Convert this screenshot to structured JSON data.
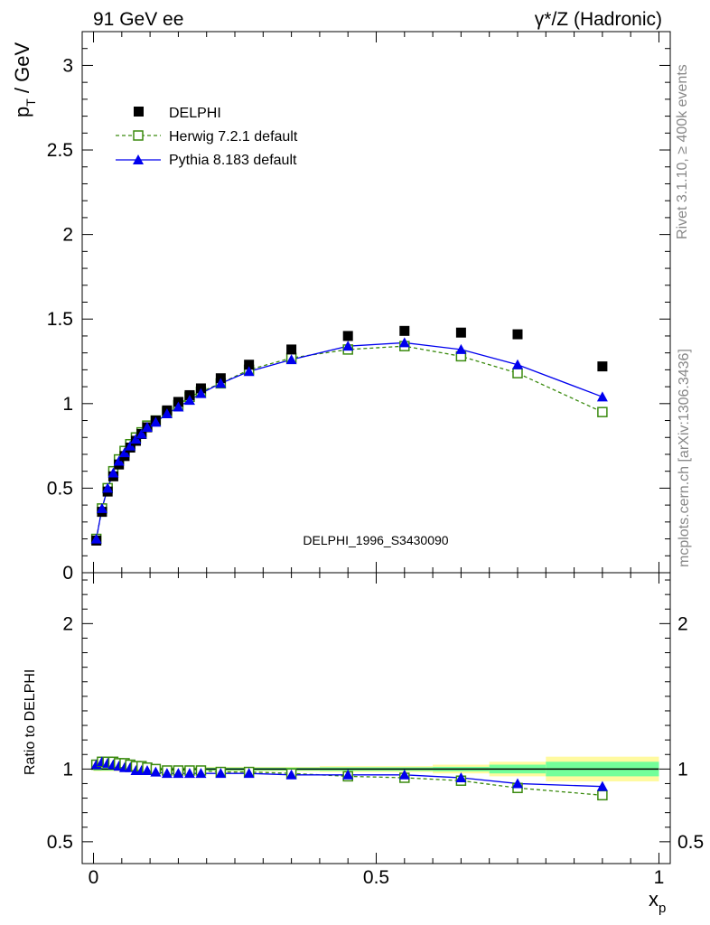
{
  "header": {
    "left": "91 GeV ee",
    "right": "γ*/Z (Hadronic)"
  },
  "side_labels": {
    "rivet": "Rivet 3.1.10, ≥ 400k events",
    "mcplots": "mcplots.cern.ch [arXiv:1306.3436]"
  },
  "watermark": "DELPHI_1996_S3430090",
  "colors": {
    "data": "#000000",
    "herwig": "#3a8a0e",
    "pythia": "#0000ee",
    "band_inner": "#73ff9a",
    "band_outer": "#fffaa0"
  },
  "chart_data": [
    {
      "type": "scatter",
      "panel": "main",
      "title": "",
      "ylabel_main": "p",
      "ylabel_sub": "T",
      "ylabel_unit": " / GeV",
      "xlabel": "",
      "xlim": [
        -0.02,
        1.02
      ],
      "ylim": [
        0,
        3.2
      ],
      "yticks": [
        0,
        0.5,
        1,
        1.5,
        2,
        2.5,
        3
      ],
      "ytick_labels": [
        "0",
        "0.5",
        "1",
        "1.5",
        "2",
        "2.5",
        "3"
      ],
      "legend": [
        "DELPHI",
        "Herwig 7.2.1 default",
        "Pythia 8.183 default"
      ],
      "x": [
        0.005,
        0.015,
        0.025,
        0.035,
        0.045,
        0.055,
        0.065,
        0.075,
        0.085,
        0.095,
        0.11,
        0.13,
        0.15,
        0.17,
        0.19,
        0.225,
        0.275,
        0.35,
        0.45,
        0.55,
        0.65,
        0.75,
        0.9
      ],
      "series": [
        {
          "name": "DELPHI",
          "values": [
            0.19,
            0.36,
            0.48,
            0.57,
            0.64,
            0.69,
            0.74,
            0.78,
            0.82,
            0.86,
            0.9,
            0.96,
            1.01,
            1.05,
            1.09,
            1.15,
            1.23,
            1.32,
            1.4,
            1.43,
            1.42,
            1.41,
            1.22
          ]
        },
        {
          "name": "Herwig 7.2.1 default",
          "values": [
            0.2,
            0.38,
            0.5,
            0.6,
            0.67,
            0.72,
            0.76,
            0.8,
            0.83,
            0.87,
            0.9,
            0.95,
            0.99,
            1.04,
            1.07,
            1.12,
            1.2,
            1.27,
            1.32,
            1.34,
            1.28,
            1.18,
            0.95
          ]
        },
        {
          "name": "Pythia 8.183 default",
          "values": [
            0.2,
            0.38,
            0.5,
            0.59,
            0.66,
            0.71,
            0.75,
            0.79,
            0.82,
            0.86,
            0.89,
            0.94,
            0.98,
            1.02,
            1.06,
            1.12,
            1.19,
            1.26,
            1.34,
            1.36,
            1.32,
            1.23,
            1.04
          ]
        }
      ]
    },
    {
      "type": "line",
      "panel": "ratio",
      "ylabel": "Ratio to DELPHI",
      "xlabel_main": "x",
      "xlabel_sub": "p",
      "xlim": [
        -0.02,
        1.02
      ],
      "ylim": [
        0.35,
        2.35
      ],
      "xticks": [
        0,
        0.5,
        1
      ],
      "xtick_labels": [
        "0",
        "0.5",
        "1"
      ],
      "yticks": [
        0.5,
        1,
        2
      ],
      "ytick_labels": [
        "0.5",
        "1",
        "2"
      ],
      "bands": [
        {
          "x": [
            0.0,
            0.2,
            0.4,
            0.6,
            0.7,
            0.8,
            1.0
          ],
          "inner": [
            0.01,
            0.01,
            0.012,
            0.015,
            0.03,
            0.05,
            0.05
          ],
          "outer": [
            0.015,
            0.015,
            0.02,
            0.03,
            0.05,
            0.085,
            0.085
          ]
        }
      ],
      "x": [
        0.005,
        0.015,
        0.025,
        0.035,
        0.045,
        0.055,
        0.065,
        0.075,
        0.085,
        0.095,
        0.11,
        0.13,
        0.15,
        0.17,
        0.19,
        0.225,
        0.275,
        0.35,
        0.45,
        0.55,
        0.65,
        0.75,
        0.9
      ],
      "series": [
        {
          "name": "Herwig 7.2.1 default",
          "values": [
            1.03,
            1.05,
            1.05,
            1.05,
            1.04,
            1.04,
            1.03,
            1.02,
            1.02,
            1.01,
            1.0,
            0.99,
            0.99,
            0.99,
            0.99,
            0.98,
            0.98,
            0.97,
            0.95,
            0.94,
            0.92,
            0.87,
            0.82
          ]
        },
        {
          "name": "Pythia 8.183 default",
          "values": [
            1.03,
            1.05,
            1.04,
            1.03,
            1.02,
            1.01,
            1.01,
            0.99,
            0.99,
            0.99,
            0.98,
            0.97,
            0.97,
            0.97,
            0.97,
            0.97,
            0.97,
            0.96,
            0.96,
            0.96,
            0.94,
            0.9,
            0.88
          ]
        }
      ]
    }
  ]
}
